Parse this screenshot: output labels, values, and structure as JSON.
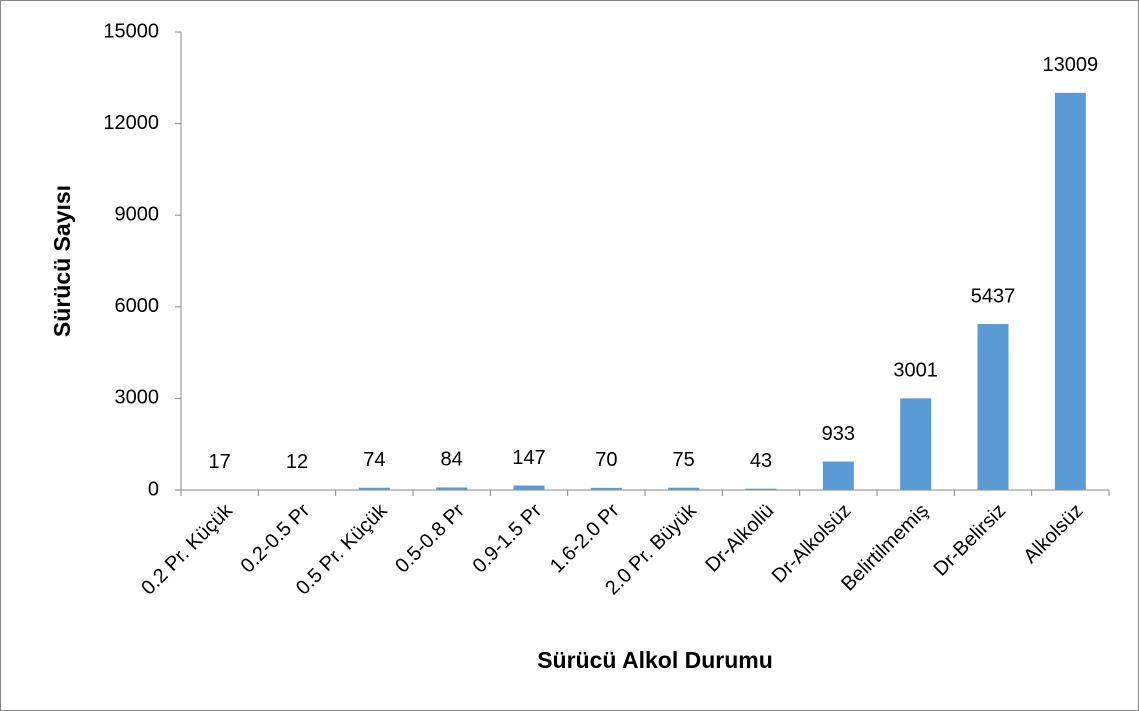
{
  "chart_data": {
    "type": "bar",
    "x_label": "Sürücü Alkol Durumu",
    "y_label": "Sürücü Sayısı",
    "categories": [
      "0.2 Pr. Küçük",
      "0.2-0.5 Pr",
      "0.5 Pr. Küçük",
      "0.5-0.8 Pr",
      "0.9-1.5 Pr",
      "1.6-2.0 Pr",
      "2.0 Pr. Büyük",
      "Dr-Alkollü",
      "Dr-Alkolsüz",
      "Belirtilmemiş",
      "Dr-Belirsiz",
      "Alkolsüz"
    ],
    "values": [
      17,
      12,
      74,
      84,
      147,
      70,
      75,
      43,
      933,
      3001,
      5437,
      13009
    ],
    "color": "#5b9bd5",
    "ylim": [
      0,
      15000
    ],
    "yticks": [
      0,
      3000,
      6000,
      9000,
      12000,
      15000
    ],
    "grid": false
  }
}
